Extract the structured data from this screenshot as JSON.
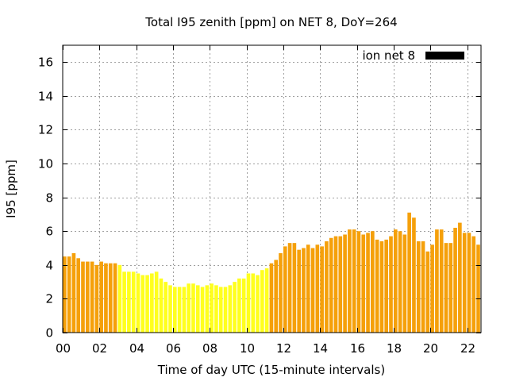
{
  "chart_data": {
    "type": "bar",
    "title": "Total I95 zenith [ppm] on NET 8, DoY=264",
    "xlabel": "Time of day UTC (15-minute intervals)",
    "ylabel": "I95 [ppm]",
    "xlim": [
      0,
      22.75
    ],
    "ylim": [
      0,
      17
    ],
    "x_ticks": [
      0,
      2,
      4,
      6,
      8,
      10,
      12,
      14,
      16,
      18,
      20,
      22
    ],
    "x_tick_labels": [
      "00",
      "02",
      "04",
      "06",
      "08",
      "10",
      "12",
      "14",
      "16",
      "18",
      "20",
      "22"
    ],
    "y_ticks": [
      0,
      2,
      4,
      6,
      8,
      10,
      12,
      14,
      16
    ],
    "y_tick_labels": [
      "0",
      "2",
      "4",
      "6",
      "8",
      "10",
      "12",
      "14",
      "16"
    ],
    "grid": true,
    "legend": {
      "position": "top-right",
      "entries": [
        {
          "label": "ion net 8",
          "color": "#000000"
        }
      ]
    },
    "bar_colors": {
      "orange": "#f5a00a",
      "yellow": "#ffff1e"
    },
    "series": [
      {
        "values": [
          4.5,
          4.5,
          4.7,
          4.4,
          4.2,
          4.2,
          4.2,
          4.0,
          4.2,
          4.1,
          4.1,
          4.1,
          4.0,
          3.6,
          3.6,
          3.6,
          3.5,
          3.4,
          3.4,
          3.5,
          3.6,
          3.2,
          3.0,
          2.8,
          2.7,
          2.7,
          2.7,
          2.9,
          2.9,
          2.8,
          2.7,
          2.8,
          2.9,
          2.8,
          2.7,
          2.7,
          2.8,
          3.0,
          3.2,
          3.2,
          3.5,
          3.5,
          3.4,
          3.7,
          3.8,
          4.1,
          4.3,
          4.7,
          5.1,
          5.3,
          5.3,
          4.9,
          5.0,
          5.2,
          5.0,
          5.2,
          5.1,
          5.4,
          5.6,
          5.7,
          5.7,
          5.8,
          6.1,
          6.1,
          6.0,
          5.8,
          5.9,
          6.0,
          5.5,
          5.4,
          5.5,
          5.7,
          6.1,
          6.0,
          5.8,
          7.1,
          6.8,
          5.4,
          5.4,
          4.8,
          5.2,
          6.1,
          6.1,
          5.3,
          5.3,
          6.2,
          6.5,
          5.9,
          5.9,
          5.7,
          5.2
        ],
        "colors": [
          "orange",
          "orange",
          "orange",
          "orange",
          "orange",
          "orange",
          "orange",
          "orange",
          "orange",
          "orange",
          "orange",
          "orange",
          "yellow",
          "yellow",
          "yellow",
          "yellow",
          "yellow",
          "yellow",
          "yellow",
          "yellow",
          "yellow",
          "yellow",
          "yellow",
          "yellow",
          "yellow",
          "yellow",
          "yellow",
          "yellow",
          "yellow",
          "yellow",
          "yellow",
          "yellow",
          "yellow",
          "yellow",
          "yellow",
          "yellow",
          "yellow",
          "yellow",
          "yellow",
          "yellow",
          "yellow",
          "yellow",
          "yellow",
          "yellow",
          "yellow",
          "orange",
          "orange",
          "orange",
          "orange",
          "orange",
          "orange",
          "orange",
          "orange",
          "orange",
          "orange",
          "orange",
          "orange",
          "orange",
          "orange",
          "orange",
          "orange",
          "orange",
          "orange",
          "orange",
          "orange",
          "orange",
          "orange",
          "orange",
          "orange",
          "orange",
          "orange",
          "orange",
          "orange",
          "orange",
          "orange",
          "orange",
          "orange",
          "orange",
          "orange",
          "orange",
          "orange",
          "orange",
          "orange",
          "orange",
          "orange",
          "orange",
          "orange",
          "orange",
          "orange",
          "orange",
          "orange"
        ]
      }
    ]
  }
}
